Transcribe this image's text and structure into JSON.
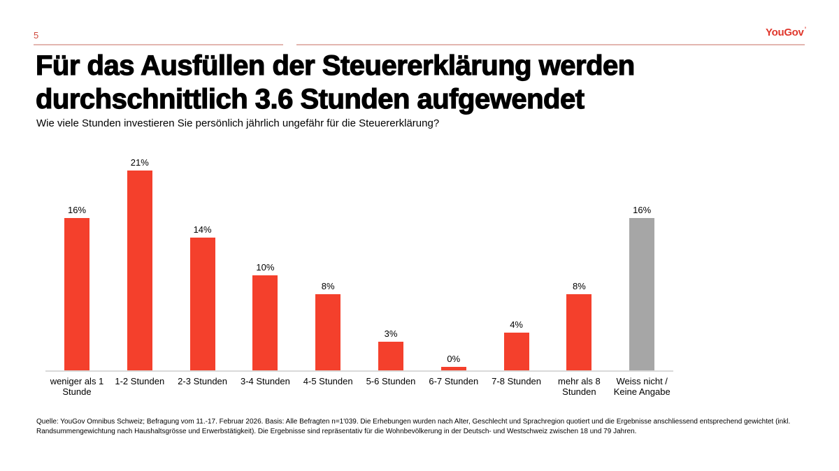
{
  "page": {
    "number": "5"
  },
  "brand": {
    "logo_text": "YouGov",
    "accent_color": "#e0372c",
    "rule_color": "#e3b6af"
  },
  "title": {
    "heading": "Für das Ausfüllen der Steuererklärung werden durchschnittlich 3.6 Stunden aufgewendet",
    "question": "Wie viele Stunden investieren Sie persönlich jährlich ungefähr für die Steuererklärung?"
  },
  "chart_data": {
    "type": "bar",
    "title": "Für das Ausfüllen der Steuererklärung werden durchschnittlich 3.6 Stunden aufgewendet",
    "subtitle": "Wie viele Stunden investieren Sie persönlich jährlich ungefähr für die Steuererklärung?",
    "categories": [
      "weniger als 1 Stunde",
      "1-2 Stunden",
      "2-3 Stunden",
      "3-4 Stunden",
      "4-5 Stunden",
      "5-6 Stunden",
      "6-7 Stunden",
      "7-8 Stunden",
      "mehr als 8 Stunden",
      "Weiss nicht / Keine Angabe"
    ],
    "values": [
      16,
      21,
      14,
      10,
      8,
      3,
      0,
      4,
      8,
      16
    ],
    "value_labels": [
      "16%",
      "21%",
      "14%",
      "10%",
      "8%",
      "3%",
      "0%",
      "4%",
      "8%",
      "16%"
    ],
    "bar_colors": [
      "#f4402c",
      "#f4402c",
      "#f4402c",
      "#f4402c",
      "#f4402c",
      "#f4402c",
      "#f4402c",
      "#f4402c",
      "#f4402c",
      "#a6a6a6"
    ],
    "xlabel": "",
    "ylabel": "",
    "ylim": [
      0,
      22
    ],
    "grid": false,
    "legend": false,
    "data_labels": "percent above bars",
    "axis_line_color": "#d9d9d9"
  },
  "footer": {
    "lines": [
      "Quelle: YouGov Omnibus Schweiz; Befragung vom 11.-17. Februar 2026. Basis: Alle Befragten n=1'039. Die Erhebungen wurden nach Alter, Geschlecht und Sprachregion quotiert und die Ergebnisse anschliessend entsprechend gewichtet (inkl.",
      "Randsummengewichtung nach Haushaltsgrösse und Erwerbstätigkeit). Die Ergebnisse sind repräsentativ für die Wohnbevölkerung in der Deutsch- und Westschweiz zwischen 18 und 79 Jahren."
    ]
  }
}
